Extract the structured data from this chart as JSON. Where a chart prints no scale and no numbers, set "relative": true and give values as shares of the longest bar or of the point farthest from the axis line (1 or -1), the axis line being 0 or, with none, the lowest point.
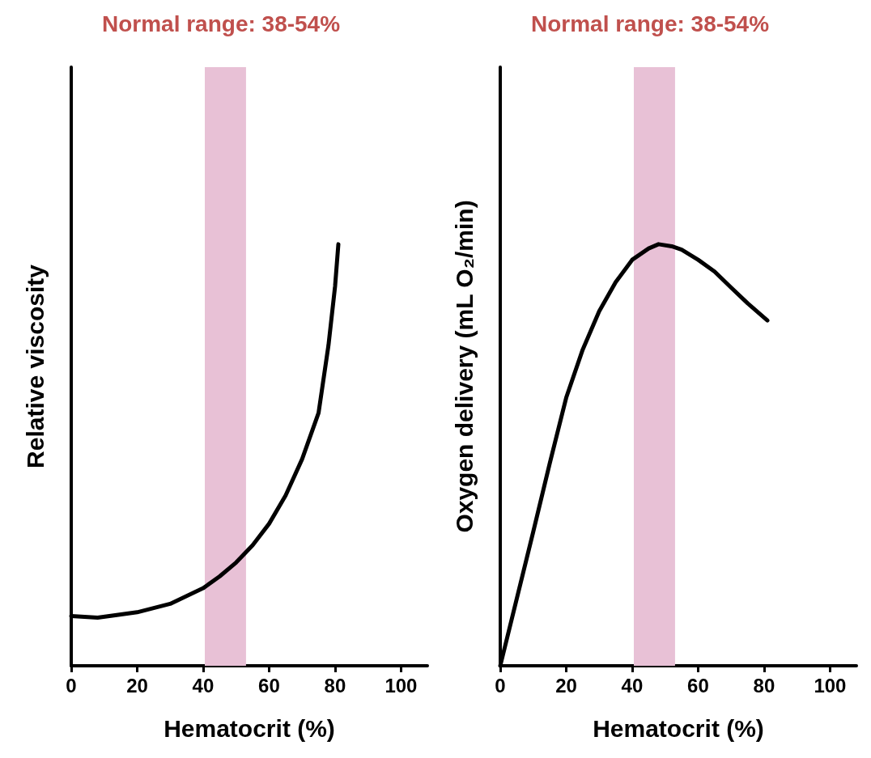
{
  "chart_data": [
    {
      "type": "line",
      "title": "Normal range: 38-54%",
      "xlabel": "Hematocrit (%)",
      "ylabel": "Relative viscosity",
      "relative": true,
      "xlim": [
        0,
        108
      ],
      "xticks": [
        0,
        20,
        40,
        60,
        80,
        100
      ],
      "marker": "none",
      "line_style": "solid",
      "series": [
        {
          "color": "#000000",
          "x": [
            0,
            8,
            20,
            30,
            40,
            45,
            50,
            55,
            60,
            65,
            70,
            75,
            78,
            80,
            81
          ],
          "values": [
            0.118,
            0.114,
            0.127,
            0.147,
            0.184,
            0.212,
            0.245,
            0.286,
            0.337,
            0.404,
            0.49,
            0.6,
            0.76,
            0.9,
            1
          ]
        }
      ],
      "bands": [
        {
          "axis": "x",
          "from": 40.5,
          "to": 53,
          "color": "#e8c1d6"
        }
      ]
    },
    {
      "type": "line",
      "title": "Normal range: 38-54%",
      "xlabel": "Hematocrit (%)",
      "ylabel": "Oxygen delivery (mL O₂/min)",
      "relative": true,
      "xlim": [
        0,
        108
      ],
      "xticks": [
        0,
        20,
        40,
        60,
        80,
        100
      ],
      "marker": "none",
      "line_style": "solid",
      "series": [
        {
          "color": "#000000",
          "x": [
            0,
            10,
            15,
            20,
            25,
            30,
            35,
            40,
            45,
            48,
            52,
            55,
            60,
            65,
            70,
            75,
            81
          ],
          "values": [
            0,
            0.318,
            0.48,
            0.636,
            0.75,
            0.841,
            0.91,
            0.963,
            0.99,
            1,
            0.995,
            0.987,
            0.963,
            0.935,
            0.897,
            0.86,
            0.819
          ]
        }
      ],
      "bands": [
        {
          "axis": "x",
          "from": 40.5,
          "to": 53,
          "color": "#e8c1d6"
        }
      ]
    }
  ]
}
